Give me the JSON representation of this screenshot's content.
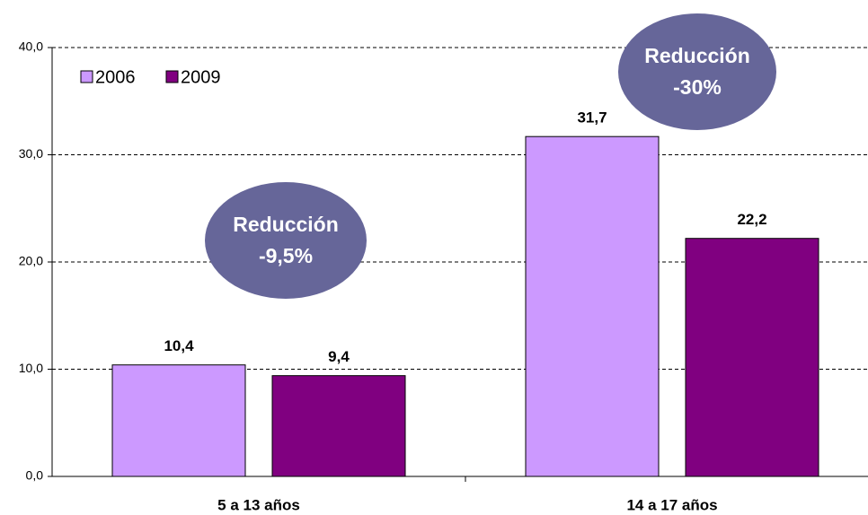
{
  "chart_data": {
    "type": "bar",
    "categories": [
      "5 a 13 años",
      "14 a 17 años"
    ],
    "series": [
      {
        "name": "2006",
        "color": "#cc99ff",
        "values": [
          10.4,
          31.7
        ],
        "value_labels": [
          "10,4",
          "31,7"
        ]
      },
      {
        "name": "2009",
        "color": "#800080",
        "values": [
          9.4,
          22.2
        ],
        "value_labels": [
          "9,4",
          "22,2"
        ]
      }
    ],
    "ylim": [
      0,
      40
    ],
    "yticks": [
      {
        "value": 0,
        "label": "0,0"
      },
      {
        "value": 10,
        "label": "10,0"
      },
      {
        "value": 20,
        "label": "20,0"
      },
      {
        "value": 30,
        "label": "30,0"
      },
      {
        "value": 40,
        "label": "40,0"
      }
    ],
    "grid": true,
    "legend": "top-left",
    "annotations": [
      [
        "Reducción",
        "-9,5%"
      ],
      [
        "Reducción",
        "-30%"
      ]
    ]
  }
}
